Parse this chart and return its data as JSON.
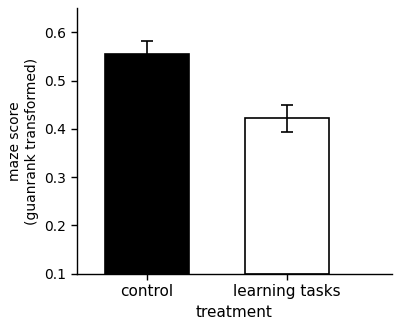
{
  "categories": [
    "control",
    "learning tasks"
  ],
  "values": [
    0.555,
    0.422
  ],
  "errors": [
    0.027,
    0.028
  ],
  "bar_colors": [
    "#000000",
    "#ffffff"
  ],
  "bar_edge_colors": [
    "#000000",
    "#000000"
  ],
  "bar_width": 0.6,
  "bar_positions": [
    1,
    2
  ],
  "xlim": [
    0.5,
    2.75
  ],
  "ylim": [
    0.1,
    0.65
  ],
  "yticks": [
    0.1,
    0.2,
    0.3,
    0.4,
    0.5,
    0.6
  ],
  "ylabel": "maze score\n(guanrank transformed)",
  "xlabel": "treatment",
  "ylabel_fontsize": 10,
  "xlabel_fontsize": 11,
  "tick_fontsize": 10,
  "xtick_fontsize": 11,
  "error_capsize": 4,
  "error_linewidth": 1.2,
  "error_color": "#000000"
}
